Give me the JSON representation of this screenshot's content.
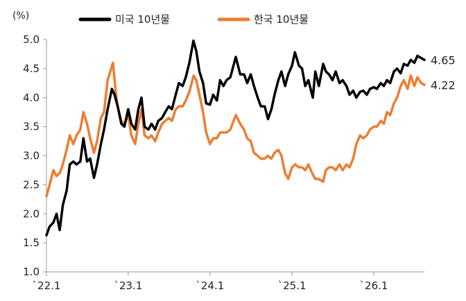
{
  "chart_data": {
    "type": "line",
    "unit_label": "(%)",
    "title": "",
    "xlabel": "",
    "ylabel": "",
    "x_range": [
      "2022-01-01",
      "2026-08-15"
    ],
    "ylim": [
      1.0,
      5.0
    ],
    "y_ticks": [
      "1.0",
      "1.5",
      "2.0",
      "2.5",
      "3.0",
      "3.5",
      "4.0",
      "4.5",
      "5.0"
    ],
    "x_ticks": [
      {
        "date": "2022-01-01",
        "label": "`22.1"
      },
      {
        "date": "2023-01-01",
        "label": "`23.1"
      },
      {
        "date": "2024-01-01",
        "label": "`24.1"
      },
      {
        "date": "2025-01-01",
        "label": "`25.1"
      },
      {
        "date": "2026-01-01",
        "label": "`26.1"
      }
    ],
    "grid": false,
    "legend_position": "top",
    "series": [
      {
        "name": "미국 10년물",
        "color": "#000000",
        "end_label": "4.65",
        "points": [
          [
            "2022-01-01",
            1.63
          ],
          [
            "2022-01-15",
            1.78
          ],
          [
            "2022-02-01",
            1.85
          ],
          [
            "2022-02-15",
            2.0
          ],
          [
            "2022-03-01",
            1.72
          ],
          [
            "2022-03-15",
            2.15
          ],
          [
            "2022-04-01",
            2.4
          ],
          [
            "2022-04-15",
            2.85
          ],
          [
            "2022-05-01",
            2.9
          ],
          [
            "2022-05-15",
            2.85
          ],
          [
            "2022-06-01",
            2.9
          ],
          [
            "2022-06-15",
            3.3
          ],
          [
            "2022-07-01",
            2.9
          ],
          [
            "2022-07-15",
            2.95
          ],
          [
            "2022-08-01",
            2.62
          ],
          [
            "2022-08-15",
            2.85
          ],
          [
            "2022-09-01",
            3.2
          ],
          [
            "2022-09-15",
            3.45
          ],
          [
            "2022-10-01",
            3.8
          ],
          [
            "2022-10-20",
            4.15
          ],
          [
            "2022-11-01",
            4.05
          ],
          [
            "2022-11-15",
            3.85
          ],
          [
            "2022-12-01",
            3.55
          ],
          [
            "2022-12-15",
            3.5
          ],
          [
            "2023-01-01",
            3.8
          ],
          [
            "2023-01-15",
            3.55
          ],
          [
            "2023-02-01",
            3.45
          ],
          [
            "2023-02-15",
            3.8
          ],
          [
            "2023-03-01",
            4.0
          ],
          [
            "2023-03-15",
            3.5
          ],
          [
            "2023-04-01",
            3.45
          ],
          [
            "2023-04-15",
            3.55
          ],
          [
            "2023-05-01",
            3.45
          ],
          [
            "2023-05-15",
            3.6
          ],
          [
            "2023-06-01",
            3.65
          ],
          [
            "2023-06-15",
            3.75
          ],
          [
            "2023-07-01",
            3.85
          ],
          [
            "2023-07-15",
            3.8
          ],
          [
            "2023-08-01",
            4.05
          ],
          [
            "2023-08-15",
            4.25
          ],
          [
            "2023-09-01",
            4.2
          ],
          [
            "2023-09-15",
            4.35
          ],
          [
            "2023-10-01",
            4.6
          ],
          [
            "2023-10-19",
            4.98
          ],
          [
            "2023-11-01",
            4.8
          ],
          [
            "2023-11-15",
            4.45
          ],
          [
            "2023-12-01",
            4.25
          ],
          [
            "2023-12-15",
            3.9
          ],
          [
            "2024-01-01",
            3.88
          ],
          [
            "2024-01-15",
            4.05
          ],
          [
            "2024-02-01",
            3.95
          ],
          [
            "2024-02-15",
            4.3
          ],
          [
            "2024-03-01",
            4.2
          ],
          [
            "2024-03-15",
            4.3
          ],
          [
            "2024-04-01",
            4.35
          ],
          [
            "2024-04-25",
            4.7
          ],
          [
            "2024-05-15",
            4.4
          ],
          [
            "2024-06-01",
            4.4
          ],
          [
            "2024-06-15",
            4.25
          ],
          [
            "2024-07-01",
            4.4
          ],
          [
            "2024-07-15",
            4.2
          ],
          [
            "2024-08-01",
            4.0
          ],
          [
            "2024-08-15",
            3.85
          ],
          [
            "2024-09-01",
            3.85
          ],
          [
            "2024-09-16",
            3.63
          ],
          [
            "2024-10-01",
            3.8
          ],
          [
            "2024-10-15",
            4.05
          ],
          [
            "2024-11-01",
            4.3
          ],
          [
            "2024-11-15",
            4.45
          ],
          [
            "2024-12-01",
            4.2
          ],
          [
            "2024-12-15",
            4.4
          ],
          [
            "2025-01-01",
            4.55
          ],
          [
            "2025-01-14",
            4.78
          ],
          [
            "2025-02-01",
            4.55
          ],
          [
            "2025-02-15",
            4.5
          ],
          [
            "2025-03-01",
            4.2
          ],
          [
            "2025-03-15",
            4.3
          ],
          [
            "2025-04-04",
            4.0
          ],
          [
            "2025-04-15",
            4.45
          ],
          [
            "2025-05-01",
            4.2
          ],
          [
            "2025-05-20",
            4.58
          ],
          [
            "2025-06-01",
            4.45
          ],
          [
            "2025-06-15",
            4.4
          ],
          [
            "2025-07-01",
            4.3
          ],
          [
            "2025-07-15",
            4.45
          ],
          [
            "2025-08-01",
            4.25
          ],
          [
            "2025-08-15",
            4.3
          ],
          [
            "2025-09-01",
            4.2
          ],
          [
            "2025-09-15",
            4.05
          ],
          [
            "2025-10-01",
            4.12
          ],
          [
            "2025-10-15",
            4.0
          ],
          [
            "2025-11-01",
            4.1
          ],
          [
            "2025-11-15",
            4.12
          ],
          [
            "2025-12-01",
            4.05
          ],
          [
            "2025-12-15",
            4.15
          ],
          [
            "2026-01-01",
            4.18
          ],
          [
            "2026-01-15",
            4.15
          ],
          [
            "2026-02-01",
            4.25
          ],
          [
            "2026-02-15",
            4.2
          ],
          [
            "2026-03-01",
            4.3
          ],
          [
            "2026-03-15",
            4.25
          ],
          [
            "2026-04-01",
            4.45
          ],
          [
            "2026-04-15",
            4.5
          ],
          [
            "2026-05-01",
            4.42
          ],
          [
            "2026-05-15",
            4.58
          ],
          [
            "2026-06-01",
            4.55
          ],
          [
            "2026-06-15",
            4.65
          ],
          [
            "2026-07-01",
            4.6
          ],
          [
            "2026-07-15",
            4.72
          ],
          [
            "2026-08-01",
            4.68
          ],
          [
            "2026-08-15",
            4.65
          ]
        ]
      },
      {
        "name": "한국 10년물",
        "color": "#ED7D31",
        "end_label": "4.22",
        "points": [
          [
            "2022-01-01",
            2.3
          ],
          [
            "2022-01-15",
            2.5
          ],
          [
            "2022-02-01",
            2.75
          ],
          [
            "2022-02-15",
            2.65
          ],
          [
            "2022-03-01",
            2.7
          ],
          [
            "2022-03-15",
            2.85
          ],
          [
            "2022-04-01",
            3.1
          ],
          [
            "2022-04-15",
            3.35
          ],
          [
            "2022-05-01",
            3.2
          ],
          [
            "2022-05-15",
            3.35
          ],
          [
            "2022-06-01",
            3.45
          ],
          [
            "2022-06-15",
            3.75
          ],
          [
            "2022-07-01",
            3.55
          ],
          [
            "2022-07-15",
            3.3
          ],
          [
            "2022-08-01",
            3.05
          ],
          [
            "2022-08-15",
            3.25
          ],
          [
            "2022-09-01",
            3.65
          ],
          [
            "2022-09-15",
            3.75
          ],
          [
            "2022-10-01",
            4.3
          ],
          [
            "2022-10-25",
            4.6
          ],
          [
            "2022-11-05",
            4.15
          ],
          [
            "2022-11-15",
            3.85
          ],
          [
            "2022-12-01",
            3.6
          ],
          [
            "2022-12-15",
            3.55
          ],
          [
            "2023-01-01",
            3.7
          ],
          [
            "2023-01-15",
            3.35
          ],
          [
            "2023-02-01",
            3.2
          ],
          [
            "2023-02-15",
            3.55
          ],
          [
            "2023-03-01",
            3.8
          ],
          [
            "2023-03-15",
            3.35
          ],
          [
            "2023-04-01",
            3.3
          ],
          [
            "2023-04-15",
            3.35
          ],
          [
            "2023-05-01",
            3.25
          ],
          [
            "2023-05-15",
            3.4
          ],
          [
            "2023-06-01",
            3.55
          ],
          [
            "2023-06-15",
            3.6
          ],
          [
            "2023-07-01",
            3.65
          ],
          [
            "2023-07-15",
            3.6
          ],
          [
            "2023-08-01",
            3.8
          ],
          [
            "2023-08-15",
            3.85
          ],
          [
            "2023-09-01",
            3.85
          ],
          [
            "2023-09-15",
            3.95
          ],
          [
            "2023-10-01",
            4.1
          ],
          [
            "2023-10-20",
            4.38
          ],
          [
            "2023-11-01",
            4.3
          ],
          [
            "2023-11-15",
            4.05
          ],
          [
            "2023-12-01",
            3.75
          ],
          [
            "2023-12-15",
            3.4
          ],
          [
            "2024-01-01",
            3.2
          ],
          [
            "2024-01-15",
            3.3
          ],
          [
            "2024-02-01",
            3.3
          ],
          [
            "2024-02-15",
            3.4
          ],
          [
            "2024-03-01",
            3.4
          ],
          [
            "2024-03-15",
            3.4
          ],
          [
            "2024-04-01",
            3.45
          ],
          [
            "2024-04-25",
            3.7
          ],
          [
            "2024-05-15",
            3.55
          ],
          [
            "2024-06-01",
            3.45
          ],
          [
            "2024-06-15",
            3.3
          ],
          [
            "2024-07-01",
            3.25
          ],
          [
            "2024-07-15",
            3.05
          ],
          [
            "2024-08-01",
            3.0
          ],
          [
            "2024-08-15",
            2.95
          ],
          [
            "2024-09-01",
            2.95
          ],
          [
            "2024-09-15",
            3.0
          ],
          [
            "2024-10-01",
            2.95
          ],
          [
            "2024-10-15",
            3.05
          ],
          [
            "2024-11-01",
            3.1
          ],
          [
            "2024-11-15",
            3.0
          ],
          [
            "2024-12-01",
            2.7
          ],
          [
            "2024-12-15",
            2.6
          ],
          [
            "2025-01-01",
            2.8
          ],
          [
            "2025-01-15",
            2.85
          ],
          [
            "2025-02-01",
            2.8
          ],
          [
            "2025-02-15",
            2.8
          ],
          [
            "2025-03-01",
            2.75
          ],
          [
            "2025-03-15",
            2.85
          ],
          [
            "2025-04-01",
            2.7
          ],
          [
            "2025-04-15",
            2.6
          ],
          [
            "2025-05-01",
            2.6
          ],
          [
            "2025-05-20",
            2.55
          ],
          [
            "2025-06-01",
            2.75
          ],
          [
            "2025-06-15",
            2.8
          ],
          [
            "2025-07-01",
            2.8
          ],
          [
            "2025-07-15",
            2.75
          ],
          [
            "2025-08-01",
            2.85
          ],
          [
            "2025-08-15",
            2.75
          ],
          [
            "2025-09-01",
            2.85
          ],
          [
            "2025-09-15",
            2.8
          ],
          [
            "2025-10-01",
            2.95
          ],
          [
            "2025-10-15",
            3.2
          ],
          [
            "2025-11-01",
            3.35
          ],
          [
            "2025-11-15",
            3.3
          ],
          [
            "2025-12-01",
            3.35
          ],
          [
            "2025-12-15",
            3.45
          ],
          [
            "2026-01-01",
            3.5
          ],
          [
            "2026-01-15",
            3.5
          ],
          [
            "2026-02-01",
            3.6
          ],
          [
            "2026-02-15",
            3.55
          ],
          [
            "2026-03-01",
            3.75
          ],
          [
            "2026-03-15",
            3.7
          ],
          [
            "2026-04-01",
            3.9
          ],
          [
            "2026-04-15",
            4.0
          ],
          [
            "2026-05-01",
            4.2
          ],
          [
            "2026-05-15",
            4.3
          ],
          [
            "2026-06-01",
            4.15
          ],
          [
            "2026-06-15",
            4.38
          ],
          [
            "2026-07-01",
            4.2
          ],
          [
            "2026-07-15",
            4.35
          ],
          [
            "2026-08-01",
            4.25
          ],
          [
            "2026-08-15",
            4.22
          ]
        ]
      }
    ]
  }
}
